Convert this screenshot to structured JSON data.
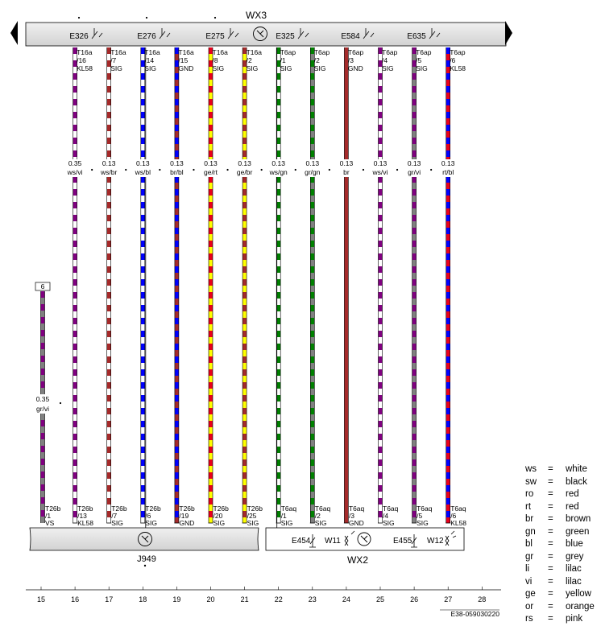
{
  "header": {
    "top_label": "WX3",
    "bottom_right_label": "WX2",
    "bottom_left_label": "J949",
    "top_components": [
      "E326",
      "E276",
      "E275",
      "E325",
      "E584",
      "E635"
    ],
    "bottom_components": [
      "E454",
      "W11",
      "E455",
      "W12"
    ],
    "doc_id": "E38-059030220"
  },
  "wires": [
    {
      "col": 16,
      "top_pin": [
        "T16a",
        "/16",
        "KL58"
      ],
      "size": "0.35",
      "color_code": "ws/vi",
      "bottom_pin": [
        "T26b",
        "/13",
        "KL58"
      ],
      "colors": [
        "#ffffff",
        "#800080"
      ]
    },
    {
      "col": 17,
      "top_pin": [
        "T16a",
        "/7",
        "SIG"
      ],
      "size": "0.13",
      "color_code": "ws/br",
      "bottom_pin": [
        "T26b",
        "/7",
        "SIG"
      ],
      "colors": [
        "#ffffff",
        "#a52a2a"
      ]
    },
    {
      "col": 18,
      "top_pin": [
        "T16a",
        "/14",
        "SIG"
      ],
      "size": "0.13",
      "color_code": "ws/bl",
      "bottom_pin": [
        "T26b",
        "/6",
        "SIG"
      ],
      "colors": [
        "#ffffff",
        "#0000ff"
      ]
    },
    {
      "col": 19,
      "top_pin": [
        "T16a",
        "/15",
        "GND"
      ],
      "size": "0.13",
      "color_code": "br/bl",
      "bottom_pin": [
        "T26b",
        "/19",
        "GND"
      ],
      "colors": [
        "#a52a2a",
        "#0000ff"
      ]
    },
    {
      "col": 20,
      "top_pin": [
        "T16a",
        "/8",
        "SIG"
      ],
      "size": "0.13",
      "color_code": "ge/rt",
      "bottom_pin": [
        "T26b",
        "/20",
        "SIG"
      ],
      "colors": [
        "#ffff00",
        "#e8001c"
      ]
    },
    {
      "col": 21,
      "top_pin": [
        "T16a",
        "/2",
        "SIG"
      ],
      "size": "0.13",
      "color_code": "ge/br",
      "bottom_pin": [
        "T26b",
        "/25",
        "SIG"
      ],
      "colors": [
        "#ffff00",
        "#a52a2a"
      ]
    },
    {
      "col": 22,
      "top_pin": [
        "T6ap",
        "/1",
        "SIG"
      ],
      "size": "0.13",
      "color_code": "ws/gn",
      "bottom_pin": [
        "T6aq",
        "/1",
        "SIG"
      ],
      "colors": [
        "#ffffff",
        "#008000"
      ]
    },
    {
      "col": 23,
      "top_pin": [
        "T6ap",
        "/2",
        "SIG"
      ],
      "size": "0.13",
      "color_code": "gr/gn",
      "bottom_pin": [
        "T6aq",
        "/2",
        "SIG"
      ],
      "colors": [
        "#808080",
        "#008000"
      ]
    },
    {
      "col": 24,
      "top_pin": [
        "T6ap",
        "/3",
        "GND"
      ],
      "size": "0.13",
      "color_code": "br",
      "bottom_pin": [
        "T6aq",
        "/3",
        "GND"
      ],
      "colors": [
        "#a52a2a"
      ]
    },
    {
      "col": 25,
      "top_pin": [
        "T6ap",
        "/4",
        "SIG"
      ],
      "size": "0.13",
      "color_code": "ws/vi",
      "bottom_pin": [
        "T6aq",
        "/4",
        "SIG"
      ],
      "colors": [
        "#ffffff",
        "#800080"
      ]
    },
    {
      "col": 26,
      "top_pin": [
        "T6ap",
        "/5",
        "SIG"
      ],
      "size": "0.13",
      "color_code": "gr/vi",
      "bottom_pin": [
        "T6aq",
        "/5",
        "SIG"
      ],
      "colors": [
        "#808080",
        "#800080"
      ]
    },
    {
      "col": 27,
      "top_pin": [
        "T6ap",
        "/6",
        "KL58"
      ],
      "size": "0.13",
      "color_code": "rt/bl",
      "bottom_pin": [
        "T6aq",
        "/6",
        "KL58"
      ],
      "colors": [
        "#e8001c",
        "#0000ff"
      ]
    }
  ],
  "side_wire": {
    "col": 15,
    "connector_ref": "6",
    "size": "0.35",
    "color_code": "gr/vi",
    "bottom_pin": [
      "T26b",
      "/1",
      "VS"
    ],
    "colors": [
      "#808080",
      "#800080"
    ]
  },
  "columns": [
    "15",
    "16",
    "17",
    "18",
    "19",
    "20",
    "21",
    "22",
    "23",
    "24",
    "25",
    "26",
    "27",
    "28"
  ],
  "legend": [
    {
      "code": "ws",
      "name": "white"
    },
    {
      "code": "sw",
      "name": "black"
    },
    {
      "code": "ro",
      "name": "red"
    },
    {
      "code": "rt",
      "name": "red"
    },
    {
      "code": "br",
      "name": "brown"
    },
    {
      "code": "gn",
      "name": "green"
    },
    {
      "code": "bl",
      "name": "blue"
    },
    {
      "code": "gr",
      "name": "grey"
    },
    {
      "code": "li",
      "name": "lilac"
    },
    {
      "code": "vi",
      "name": "lilac"
    },
    {
      "code": "ge",
      "name": "yellow"
    },
    {
      "code": "or",
      "name": "orange"
    },
    {
      "code": "rs",
      "name": "pink"
    }
  ],
  "legend_eq": "="
}
